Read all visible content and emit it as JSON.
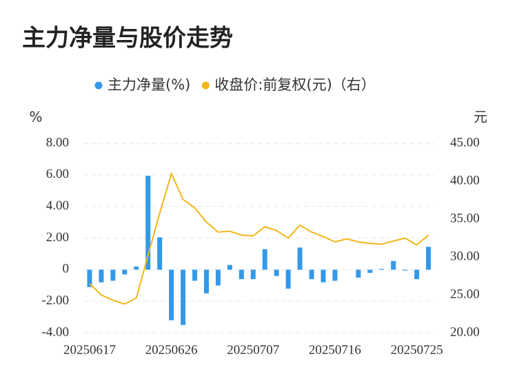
{
  "chart_data": {
    "type": "bar_line",
    "title": "主力净量与股价走势",
    "y_unit": "%",
    "y2_unit": "元",
    "categories": [
      "20250617",
      null,
      null,
      null,
      null,
      null,
      null,
      "20250626",
      null,
      null,
      null,
      null,
      null,
      null,
      "20250707",
      null,
      null,
      null,
      null,
      null,
      null,
      "20250716",
      null,
      null,
      null,
      null,
      null,
      null,
      "20250725",
      null
    ],
    "series": [
      {
        "name": "主力净量(%)",
        "type": "bar",
        "color": "#3399e8",
        "values": [
          -1.1,
          -0.8,
          -0.7,
          -0.3,
          0.2,
          5.95,
          2.05,
          -3.2,
          -3.5,
          -0.7,
          -1.5,
          -1.0,
          0.3,
          -0.6,
          -0.6,
          1.3,
          -0.4,
          -1.2,
          1.4,
          -0.6,
          -0.8,
          -0.7,
          0.0,
          -0.5,
          -0.2,
          0.05,
          0.55,
          -0.05,
          -0.6,
          1.45
        ]
      },
      {
        "name": "收盘价:前复权(元)（右）",
        "type": "line",
        "axis": "y2",
        "color": "#f2b619",
        "values": [
          26.5,
          25.0,
          24.3,
          23.8,
          24.6,
          30.2,
          35.8,
          41.0,
          37.6,
          36.5,
          34.6,
          33.3,
          33.4,
          32.9,
          32.8,
          34.0,
          33.5,
          32.5,
          34.2,
          33.3,
          32.7,
          32.0,
          32.4,
          32.0,
          31.8,
          31.7,
          32.1,
          32.5,
          31.6,
          32.9
        ]
      }
    ],
    "ylim": [
      -4,
      8
    ],
    "yticks": [
      {
        "value": -4,
        "label": "-4.00"
      },
      {
        "value": -2,
        "label": "-2.00"
      },
      0,
      {
        "value": 2,
        "label": "2.00"
      },
      {
        "value": 4,
        "label": "4.00"
      },
      {
        "value": 6,
        "label": "6.00"
      },
      {
        "value": 8,
        "label": "8.00"
      }
    ],
    "y2lim": [
      20,
      45
    ],
    "y2ticks": [
      {
        "value": 20,
        "label": "20.00"
      },
      {
        "value": 25,
        "label": "25.00"
      },
      {
        "value": 30,
        "label": "30.00"
      },
      {
        "value": 35,
        "label": "35.00"
      },
      {
        "value": 40,
        "label": "40.00"
      },
      {
        "value": 45,
        "label": "45.00"
      }
    ],
    "grid": true,
    "legend": "top"
  }
}
